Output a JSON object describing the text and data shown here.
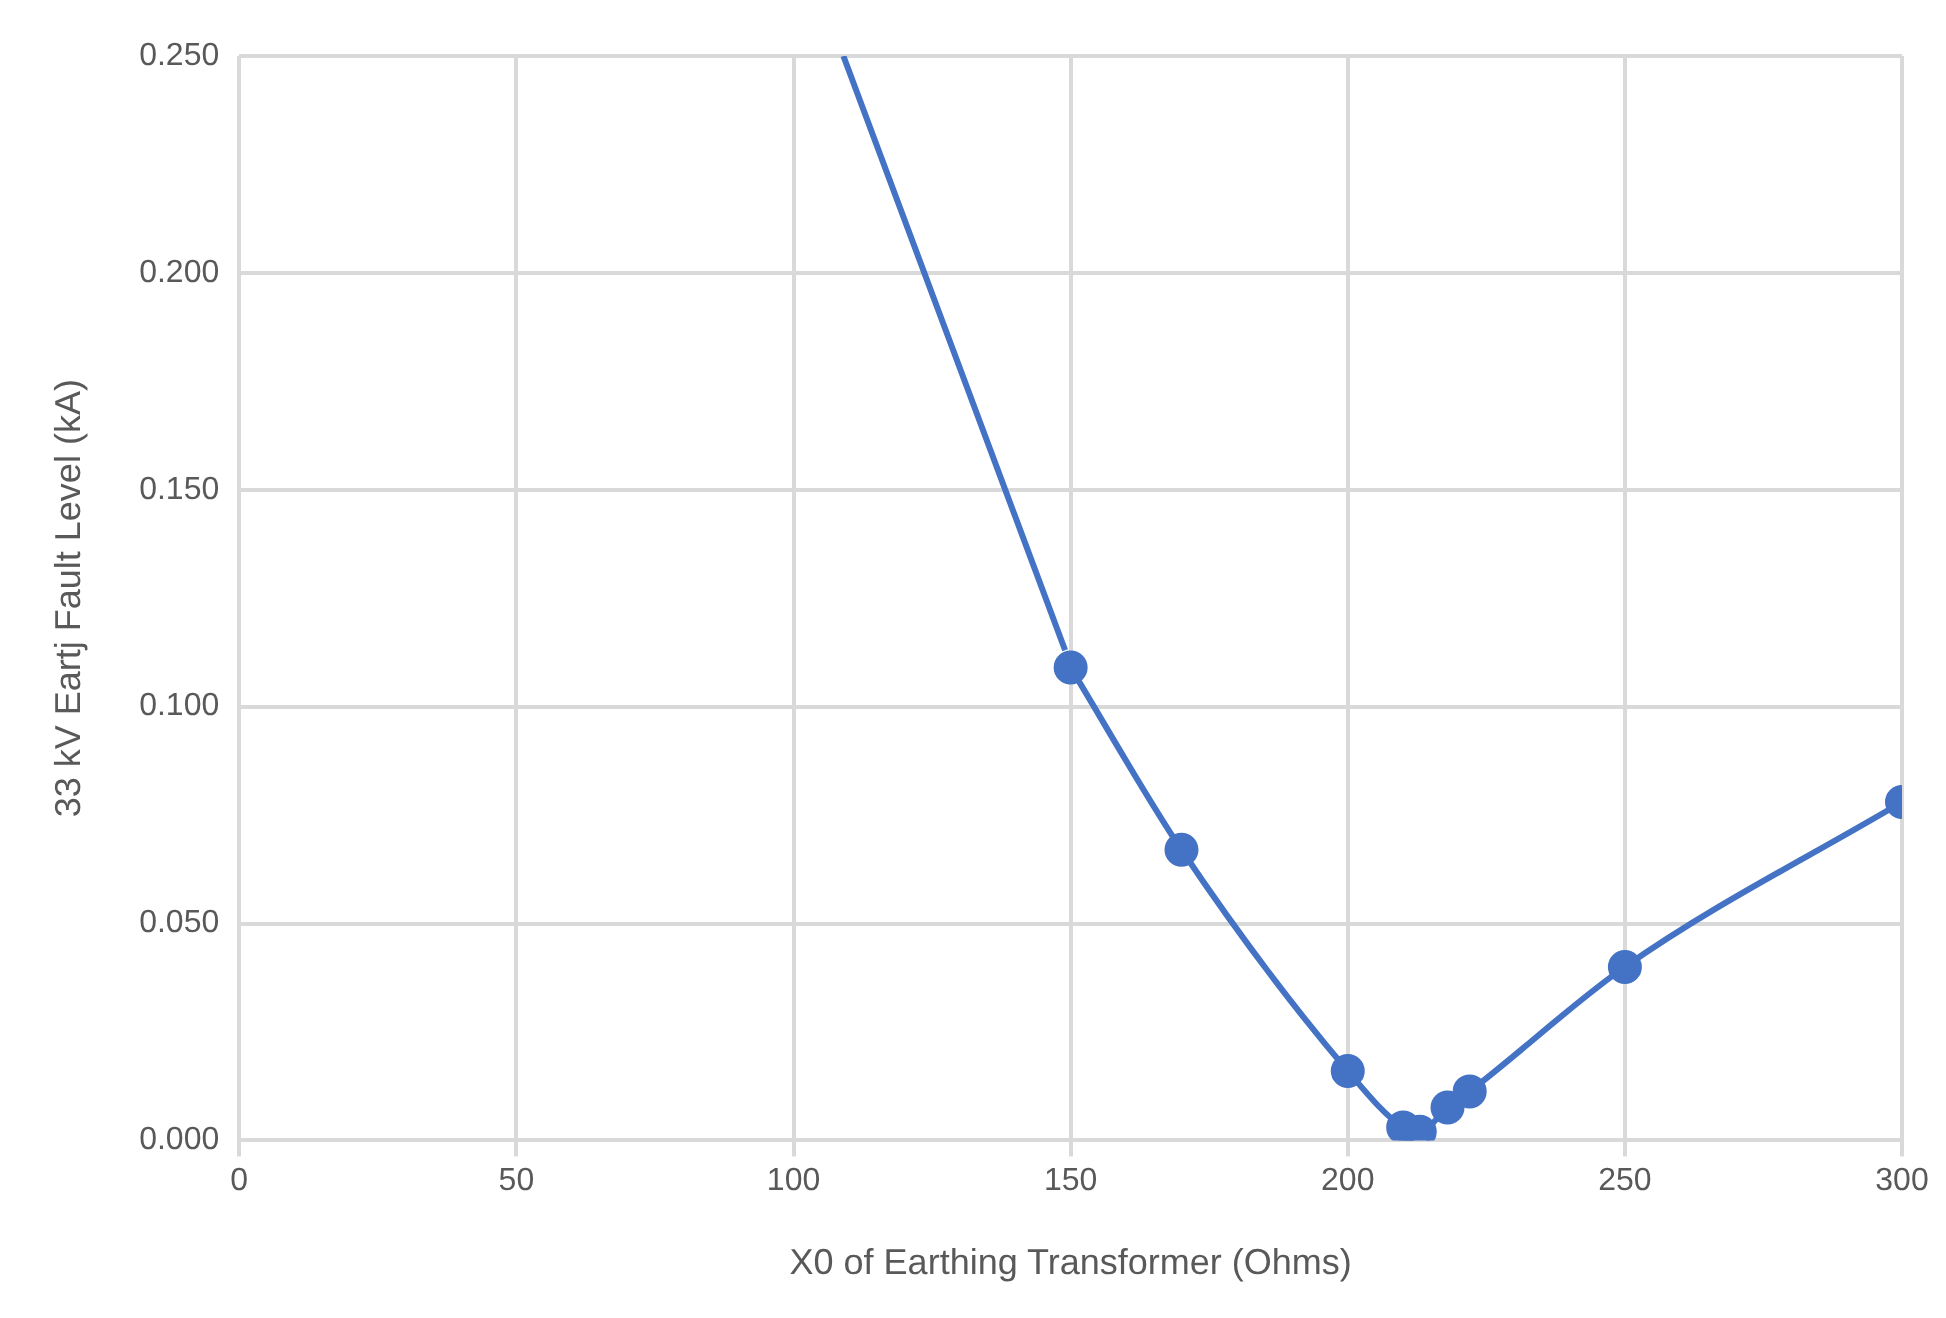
{
  "chart_data": {
    "type": "line",
    "xlabel": "X0 of Earthing Transformer (Ohms)",
    "ylabel": "33 kV Eartj Fault Level (kA)",
    "series": [
      {
        "color": "#4472c4",
        "marker": "none",
        "x": [
          109,
          149
        ],
        "values": [
          0.25,
          0.113
        ]
      },
      {
        "color": "#4472c4",
        "marker": "circle",
        "x": [
          150,
          170,
          200,
          210,
          213,
          218,
          222,
          250,
          300
        ],
        "values": [
          0.109,
          0.067,
          0.016,
          0.003,
          0.002,
          0.0076,
          0.0113,
          0.04,
          0.078
        ]
      }
    ],
    "xlim": [
      0,
      300
    ],
    "xticks": [
      0,
      50,
      100,
      150,
      200,
      250,
      300
    ],
    "ylim": [
      0,
      0.25
    ],
    "yticks": [
      {
        "value": 0,
        "label": "0.000"
      },
      {
        "value": 0.05,
        "label": "0.050"
      },
      {
        "value": 0.1,
        "label": "0.100"
      },
      {
        "value": 0.15,
        "label": "0.150"
      },
      {
        "value": 0.2,
        "label": "0.200"
      },
      {
        "value": 0.25,
        "label": "0.250"
      }
    ],
    "grid": true,
    "legend": false
  }
}
